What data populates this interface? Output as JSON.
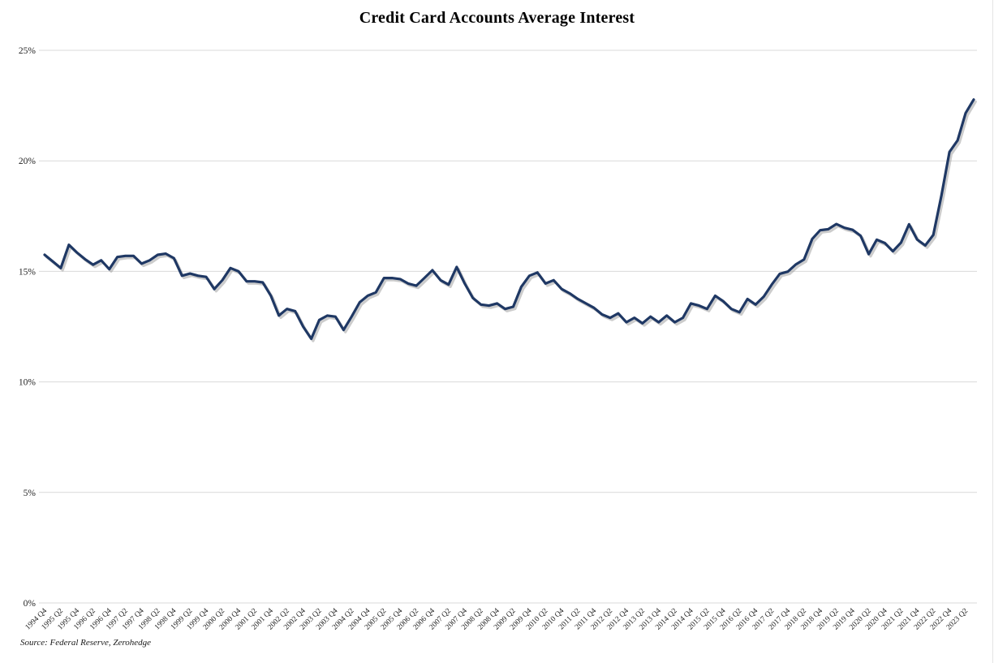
{
  "chart_data": {
    "type": "line",
    "title": "Credit Card Accounts Average Interest",
    "source_note": "Source: Federal Reserve, Zerohedge",
    "ylim": [
      0,
      25
    ],
    "y_tick_values": [
      0,
      5,
      10,
      15,
      20,
      25
    ],
    "y_ticks": [
      "0%",
      "5%",
      "10%",
      "15%",
      "20%",
      "25%"
    ],
    "x_tick_every": 2,
    "grid": "horizontal-only",
    "legend": "none",
    "colors": {
      "line": "#1F3864",
      "line_shadow": "#9A9A9A",
      "gridline": "#D9D9D9",
      "axis_label": "#262626",
      "background": "#FFFFFF"
    },
    "series": [
      {
        "name": "Credit Card Accounts Average Interest",
        "color": "#1F3864",
        "x": [
          "1994 Q4",
          "1995 Q1",
          "1995 Q2",
          "1995 Q3",
          "1995 Q4",
          "1996 Q1",
          "1996 Q2",
          "1996 Q3",
          "1996 Q4",
          "1997 Q1",
          "1997 Q2",
          "1997 Q3",
          "1997 Q4",
          "1998 Q1",
          "1998 Q2",
          "1998 Q3",
          "1998 Q4",
          "1999 Q1",
          "1999 Q2",
          "1999 Q3",
          "1999 Q4",
          "2000 Q1",
          "2000 Q2",
          "2000 Q3",
          "2000 Q4",
          "2001 Q1",
          "2001 Q2",
          "2001 Q3",
          "2001 Q4",
          "2002 Q1",
          "2002 Q2",
          "2002 Q3",
          "2002 Q4",
          "2003 Q1",
          "2003 Q2",
          "2003 Q3",
          "2003 Q4",
          "2004 Q1",
          "2004 Q2",
          "2004 Q3",
          "2004 Q4",
          "2005 Q1",
          "2005 Q2",
          "2005 Q3",
          "2005 Q4",
          "2006 Q1",
          "2006 Q2",
          "2006 Q3",
          "2006 Q4",
          "2007 Q1",
          "2007 Q2",
          "2007 Q3",
          "2007 Q4",
          "2008 Q1",
          "2008 Q2",
          "2008 Q3",
          "2008 Q4",
          "2009 Q1",
          "2009 Q2",
          "2009 Q3",
          "2009 Q4",
          "2010 Q1",
          "2010 Q2",
          "2010 Q3",
          "2010 Q4",
          "2011 Q1",
          "2011 Q2",
          "2011 Q3",
          "2011 Q4",
          "2012 Q1",
          "2012 Q2",
          "2012 Q3",
          "2012 Q4",
          "2013 Q1",
          "2013 Q2",
          "2013 Q3",
          "2013 Q4",
          "2014 Q1",
          "2014 Q2",
          "2014 Q3",
          "2014 Q4",
          "2015 Q1",
          "2015 Q2",
          "2015 Q3",
          "2015 Q4",
          "2016 Q1",
          "2016 Q2",
          "2016 Q3",
          "2016 Q4",
          "2017 Q1",
          "2017 Q2",
          "2017 Q3",
          "2017 Q4",
          "2018 Q1",
          "2018 Q2",
          "2018 Q3",
          "2018 Q4",
          "2019 Q1",
          "2019 Q2",
          "2019 Q3",
          "2019 Q4",
          "2020 Q1",
          "2020 Q2",
          "2020 Q3",
          "2020 Q4",
          "2021 Q1",
          "2021 Q2",
          "2021 Q3",
          "2021 Q4",
          "2022 Q1",
          "2022 Q2",
          "2022 Q3",
          "2022 Q4",
          "2023 Q1",
          "2023 Q2",
          "2023 Q3"
        ],
        "values": [
          15.75,
          15.45,
          15.15,
          16.2,
          15.85,
          15.55,
          15.3,
          15.5,
          15.1,
          15.65,
          15.7,
          15.7,
          15.35,
          15.5,
          15.75,
          15.8,
          15.6,
          14.8,
          14.9,
          14.8,
          14.75,
          14.2,
          14.6,
          15.15,
          15.0,
          14.55,
          14.55,
          14.5,
          13.9,
          13.0,
          13.3,
          13.2,
          12.5,
          11.95,
          12.8,
          13.0,
          12.95,
          12.35,
          12.95,
          13.6,
          13.9,
          14.05,
          14.7,
          14.7,
          14.65,
          14.45,
          14.35,
          14.7,
          15.05,
          14.6,
          14.4,
          15.2,
          14.45,
          13.8,
          13.5,
          13.45,
          13.55,
          13.3,
          13.4,
          14.3,
          14.8,
          14.95,
          14.45,
          14.6,
          14.2,
          14.0,
          13.75,
          13.55,
          13.35,
          13.05,
          12.9,
          13.1,
          12.7,
          12.9,
          12.65,
          12.95,
          12.7,
          13.0,
          12.7,
          12.9,
          13.55,
          13.45,
          13.3,
          13.9,
          13.65,
          13.3,
          13.15,
          13.75,
          13.5,
          13.85,
          14.4,
          14.89,
          14.99,
          15.32,
          15.54,
          16.46,
          16.86,
          16.91,
          17.14,
          16.97,
          16.88,
          16.61,
          15.78,
          16.43,
          16.28,
          15.91,
          16.3,
          17.13,
          16.44,
          16.17,
          16.65,
          18.43,
          20.4,
          20.92,
          22.16,
          22.77
        ]
      }
    ]
  }
}
